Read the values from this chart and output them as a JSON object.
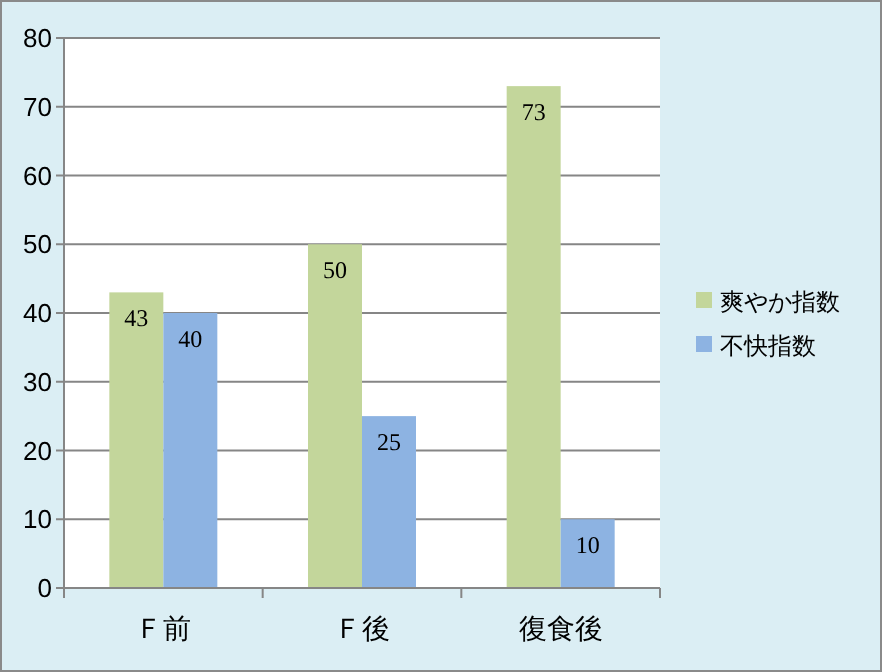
{
  "chart_data": {
    "type": "bar",
    "categories": [
      "Ｆ前",
      "Ｆ後",
      "復食後"
    ],
    "series": [
      {
        "name": "爽やか指数",
        "color": "#c3d69b",
        "values": [
          43,
          50,
          73
        ]
      },
      {
        "name": "不快指数",
        "color": "#8db3e2",
        "values": [
          40,
          25,
          10
        ]
      }
    ],
    "ylim": [
      0,
      80
    ],
    "yticks": [
      0,
      10,
      20,
      30,
      40,
      50,
      60,
      70,
      80
    ],
    "grid": "y",
    "legend": "right",
    "data_labels": true
  }
}
